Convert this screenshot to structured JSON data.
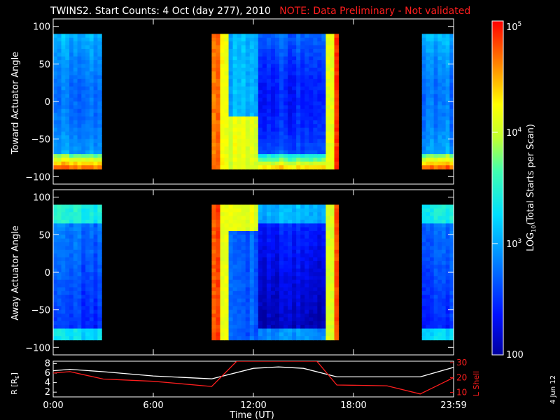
{
  "title": {
    "main": "TWINS2. Start Counts:  4 Oct (day 277), 2010",
    "note": "NOTE: Data Preliminary - Not validated"
  },
  "side_date": "4 Jun 12",
  "colors": {
    "background": "#000000",
    "axis": "#ffffff",
    "note": "#ff1e1e",
    "r_line": "#ffffff",
    "lshell_line": "#ff1e1e"
  },
  "chart_data": [
    {
      "type": "heatmap",
      "name": "toward-panel",
      "ylabel": "Toward Actuator Angle",
      "ylim": [
        -110,
        110
      ],
      "yticks": [
        100,
        50,
        0,
        -50,
        -100
      ],
      "xlim": [
        0,
        24
      ],
      "xticks": [
        0,
        6,
        12,
        18,
        24
      ],
      "data_ranges_hours": [
        [
          0.0,
          2.9
        ],
        [
          9.5,
          17.1
        ],
        [
          22.1,
          24.0
        ]
      ],
      "angle_range": [
        -90,
        90
      ],
      "colorscale": "log rainbow"
    },
    {
      "type": "heatmap",
      "name": "away-panel",
      "ylabel": "Away Actuator Angle",
      "ylim": [
        -110,
        110
      ],
      "yticks": [
        100,
        50,
        0,
        -50,
        -100
      ],
      "xlim": [
        0,
        24
      ],
      "xticks": [
        0,
        6,
        12,
        18,
        24
      ],
      "data_ranges_hours": [
        [
          0.0,
          2.9
        ],
        [
          9.5,
          17.1
        ],
        [
          22.1,
          24.0
        ]
      ],
      "angle_range": [
        -90,
        90
      ],
      "colorscale": "log rainbow"
    },
    {
      "type": "line",
      "name": "orbit-panel",
      "ylabel_left": "R [R",
      "ylabel_left_sub": "E",
      "ylabel_left_close": "]",
      "ylabel_right": "L Shell",
      "left_yticks": [
        2,
        4,
        6,
        8
      ],
      "left_ylim": [
        1,
        8.5
      ],
      "right_yticks": [
        10,
        20,
        30
      ],
      "right_ylim": [
        7,
        31
      ],
      "x_tick_labels": [
        "0:00",
        "6:00",
        "12:00",
        "18:00",
        "23:59"
      ],
      "xlabel": "Time (UT)",
      "series": [
        {
          "axis": "left",
          "x": [
            0,
            1,
            3,
            6,
            9.5,
            12,
            13.5,
            15,
            17,
            20,
            22,
            24
          ],
          "y": [
            6.5,
            6.8,
            6.3,
            5.4,
            4.8,
            7.0,
            7.3,
            7.0,
            5.2,
            5.2,
            5.2,
            7.2
          ]
        },
        {
          "axis": "right",
          "x": [
            0,
            1,
            3,
            6,
            9.5,
            11,
            15.8,
            17,
            20,
            22,
            24
          ],
          "y": [
            23,
            24,
            19,
            17.5,
            14,
            31,
            31,
            15,
            14.5,
            9,
            20
          ]
        }
      ]
    },
    {
      "type": "colorbar",
      "name": "colorbar",
      "label": "LOG",
      "label_sub": "10",
      "label_rest": "(Total Starts per Scan)",
      "tick_labels": [
        "10",
        "5",
        "10",
        "4",
        "10",
        "3",
        "100"
      ],
      "ticks": [
        {
          "base": "10",
          "exp": "5",
          "value": 100000
        },
        {
          "base": "10",
          "exp": "4",
          "value": 10000
        },
        {
          "base": "10",
          "exp": "3",
          "value": 1000
        },
        {
          "base": "100",
          "exp": "",
          "value": 100
        }
      ]
    }
  ]
}
